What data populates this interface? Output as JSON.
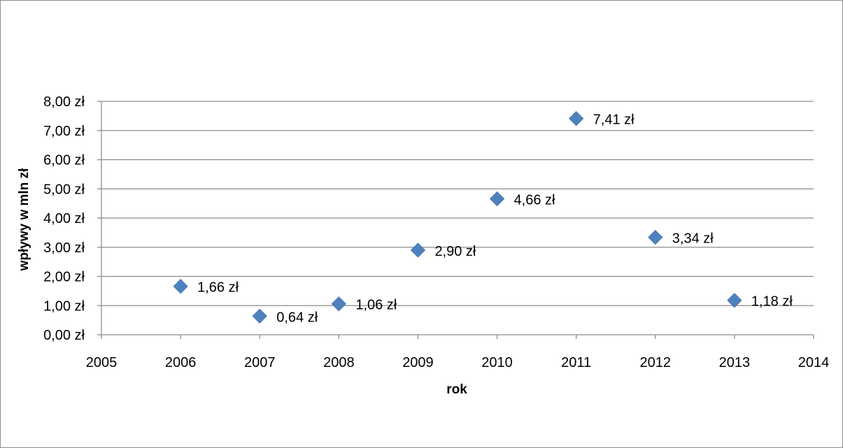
{
  "chart_data": {
    "type": "scatter",
    "title": "",
    "xlabel": "rok",
    "ylabel": "wpływy w mln zł",
    "xlim": [
      2005,
      2014
    ],
    "ylim": [
      0,
      8
    ],
    "x_ticks": [
      "2005",
      "2006",
      "2007",
      "2008",
      "2009",
      "2010",
      "2011",
      "2012",
      "2013",
      "2014"
    ],
    "y_ticks": [
      "0,00 zł",
      "1,00 zł",
      "2,00 zł",
      "3,00 zł",
      "4,00 zł",
      "5,00 zł",
      "6,00 zł",
      "7,00 zł",
      "8,00 zł"
    ],
    "grid": "horizontal",
    "legend": "none",
    "marker": "diamond",
    "marker_color": "#4f81bd",
    "series": [
      {
        "x": [
          2006,
          2007,
          2008,
          2009,
          2010,
          2011,
          2012,
          2013
        ],
        "y": [
          1.66,
          0.64,
          1.06,
          2.9,
          4.66,
          7.41,
          3.34,
          1.18
        ],
        "labels": [
          "1,66 zł",
          "0,64 zł",
          "1,06 zł",
          "2,90 zł",
          "4,66 zł",
          "7,41 zł",
          "3,34 zł",
          "1,18 zł"
        ]
      }
    ]
  }
}
